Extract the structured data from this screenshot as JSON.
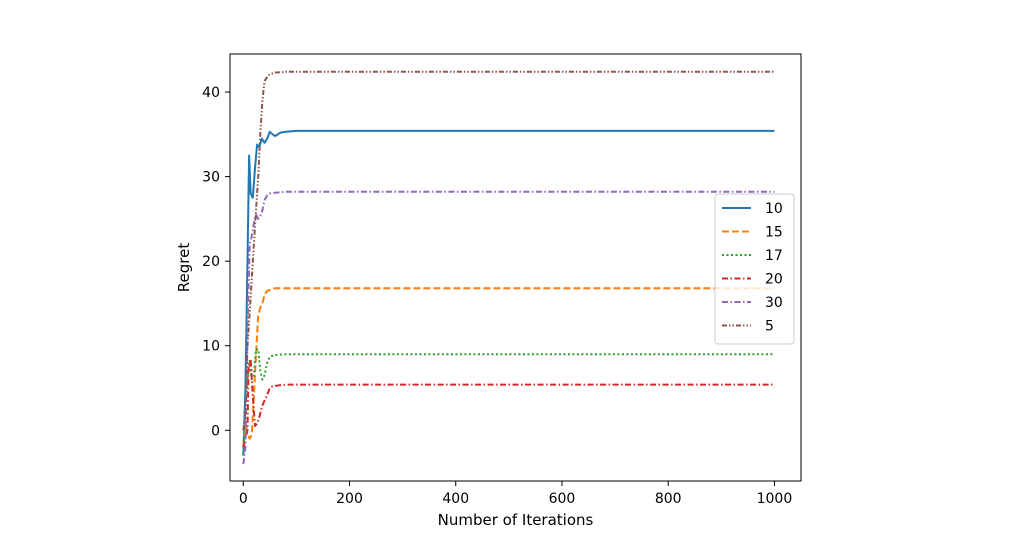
{
  "chart_data": {
    "type": "line",
    "xlabel": "Number of Iterations",
    "ylabel": "Regret",
    "xlim": [
      -25,
      1050
    ],
    "ylim": [
      -6,
      44.5
    ],
    "xticks": [
      0,
      200,
      400,
      600,
      800,
      1000
    ],
    "yticks": [
      0,
      10,
      20,
      30,
      40
    ],
    "grid": false,
    "legend_position": "center-right",
    "series": [
      {
        "name": "10",
        "color": "#1f77b4",
        "dash": "solid",
        "points": [
          [
            0,
            -3
          ],
          [
            4,
            5
          ],
          [
            8,
            20
          ],
          [
            11,
            32.5
          ],
          [
            14,
            28
          ],
          [
            18,
            27.5
          ],
          [
            22,
            31
          ],
          [
            26,
            33.8
          ],
          [
            30,
            33.5
          ],
          [
            35,
            34.5
          ],
          [
            40,
            34
          ],
          [
            45,
            34.5
          ],
          [
            50,
            35.3
          ],
          [
            55,
            35
          ],
          [
            60,
            34.8
          ],
          [
            70,
            35.2
          ],
          [
            80,
            35.3
          ],
          [
            100,
            35.4
          ],
          [
            1000,
            35.4
          ]
        ]
      },
      {
        "name": "15",
        "color": "#ff7f0e",
        "dash": "dashed",
        "points": [
          [
            0,
            -2
          ],
          [
            4,
            1
          ],
          [
            8,
            -0.5
          ],
          [
            12,
            -1
          ],
          [
            16,
            -0.5
          ],
          [
            20,
            4
          ],
          [
            24,
            9
          ],
          [
            28,
            13.5
          ],
          [
            32,
            14.5
          ],
          [
            36,
            15
          ],
          [
            40,
            16
          ],
          [
            45,
            16.5
          ],
          [
            50,
            16.6
          ],
          [
            60,
            16.8
          ],
          [
            80,
            16.8
          ],
          [
            1000,
            16.8
          ]
        ]
      },
      {
        "name": "17",
        "color": "#2ca02c",
        "dash": "dotted",
        "points": [
          [
            0,
            -3
          ],
          [
            4,
            2
          ],
          [
            8,
            6
          ],
          [
            12,
            8.2
          ],
          [
            16,
            6
          ],
          [
            20,
            6.5
          ],
          [
            24,
            9.5
          ],
          [
            28,
            9.6
          ],
          [
            32,
            7
          ],
          [
            36,
            6
          ],
          [
            40,
            6.5
          ],
          [
            45,
            8
          ],
          [
            50,
            8.7
          ],
          [
            60,
            8.9
          ],
          [
            80,
            9
          ],
          [
            1000,
            9
          ]
        ]
      },
      {
        "name": "20",
        "color": "#d62728",
        "dash": "dashdot",
        "points": [
          [
            0,
            -2
          ],
          [
            4,
            -1
          ],
          [
            8,
            0
          ],
          [
            10,
            8
          ],
          [
            14,
            8.2
          ],
          [
            18,
            4
          ],
          [
            22,
            0.5
          ],
          [
            26,
            0.8
          ],
          [
            30,
            1.5
          ],
          [
            35,
            2.8
          ],
          [
            40,
            3.5
          ],
          [
            45,
            4.2
          ],
          [
            50,
            5
          ],
          [
            55,
            5.2
          ],
          [
            65,
            5.3
          ],
          [
            80,
            5.4
          ],
          [
            1000,
            5.4
          ]
        ]
      },
      {
        "name": "30",
        "color": "#9467bd",
        "dash": "dashdot",
        "points": [
          [
            0,
            -4
          ],
          [
            4,
            -2
          ],
          [
            8,
            12
          ],
          [
            12,
            22
          ],
          [
            16,
            23
          ],
          [
            20,
            24.5
          ],
          [
            24,
            25.5
          ],
          [
            28,
            25
          ],
          [
            32,
            25.3
          ],
          [
            36,
            26
          ],
          [
            40,
            27.2
          ],
          [
            45,
            27.8
          ],
          [
            50,
            28
          ],
          [
            60,
            28.1
          ],
          [
            80,
            28.2
          ],
          [
            1000,
            28.2
          ]
        ]
      },
      {
        "name": "5",
        "color": "#8c564b",
        "dash": "dashdotdot",
        "points": [
          [
            0,
            0
          ],
          [
            4,
            2
          ],
          [
            8,
            10
          ],
          [
            12,
            14
          ],
          [
            16,
            18
          ],
          [
            20,
            22
          ],
          [
            24,
            26
          ],
          [
            28,
            30
          ],
          [
            32,
            35
          ],
          [
            36,
            39
          ],
          [
            40,
            41.3
          ],
          [
            45,
            41.8
          ],
          [
            50,
            42.1
          ],
          [
            60,
            42.3
          ],
          [
            80,
            42.4
          ],
          [
            1000,
            42.4
          ]
        ]
      }
    ]
  }
}
